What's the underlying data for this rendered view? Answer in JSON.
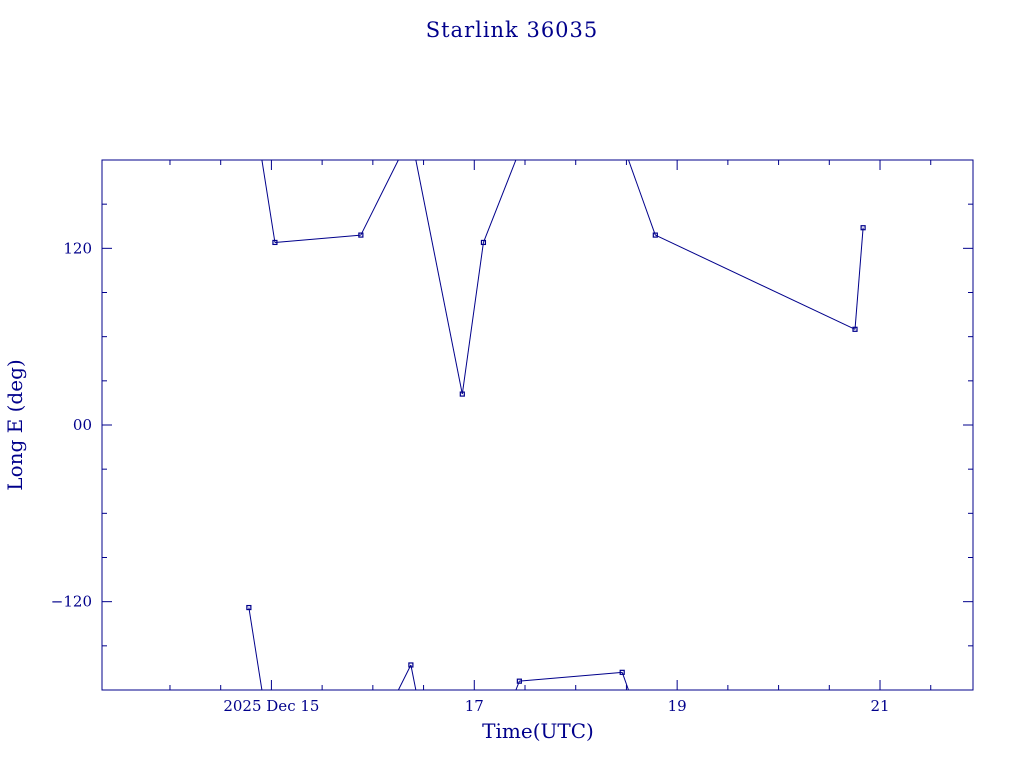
{
  "chart_data": {
    "type": "line",
    "title": "Starlink 36035",
    "xlabel": "Time(UTC)",
    "ylabel": "Long E (deg)",
    "xlim": [
      "2025-12-13T07:55",
      "2025-12-21T22:00"
    ],
    "ylim": [
      -180,
      180
    ],
    "x_ticks": [
      {
        "x": "2025-12-15",
        "label": "2025 Dec 15"
      },
      {
        "x": "2025-12-17",
        "label": "17"
      },
      {
        "x": "2025-12-19",
        "label": "19"
      },
      {
        "x": "2025-12-21",
        "label": "21"
      }
    ],
    "y_ticks": [
      {
        "y": -120,
        "label": "−120"
      },
      {
        "y": 0,
        "label": "00"
      },
      {
        "y": 120,
        "label": "120"
      }
    ],
    "series": [
      {
        "points": [
          {
            "x": "2025-12-14T18:40",
            "y": -124
          },
          {
            "x": "2025-12-15T00:50",
            "y": 124
          },
          {
            "x": "2025-12-15T21:10",
            "y": 129
          },
          {
            "x": "2025-12-16T09:00",
            "y": -163
          },
          {
            "x": "2025-12-16T21:10",
            "y": 21
          },
          {
            "x": "2025-12-17T02:10",
            "y": 124
          },
          {
            "x": "2025-12-17T10:40",
            "y": -174
          },
          {
            "x": "2025-12-18T11:00",
            "y": -168
          },
          {
            "x": "2025-12-18T18:50",
            "y": 129
          },
          {
            "x": "2025-12-20T18:05",
            "y": 65
          },
          {
            "x": "2025-12-20T20:00",
            "y": 134
          }
        ]
      }
    ],
    "grid": false,
    "legend": "none"
  }
}
